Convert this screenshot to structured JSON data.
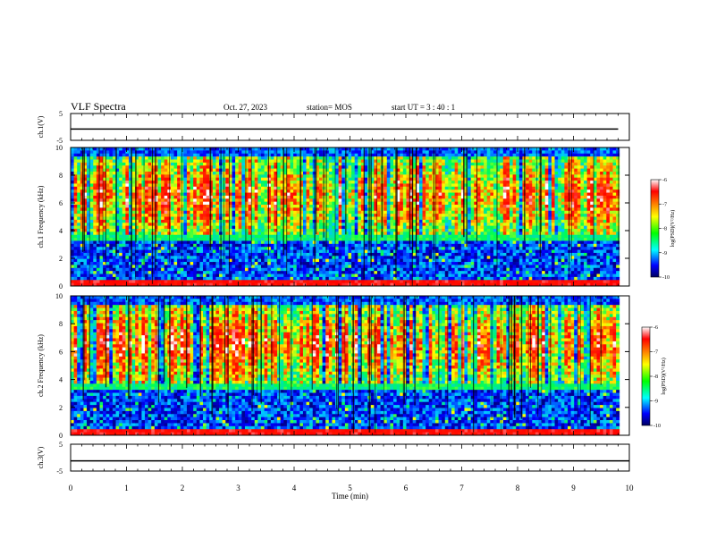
{
  "header": {
    "title": "VLF Spectra",
    "date": "Oct. 27, 2023",
    "station": "station= MOS",
    "start": "start  UT  =   3  : 40 : 1"
  },
  "chart_data": [
    {
      "type": "line",
      "ylabel": "ch.1(V)",
      "ylim": [
        -5,
        5
      ],
      "yticks": [
        "5",
        "-5"
      ],
      "series": [
        {
          "x": [
            0,
            9.8
          ],
          "y": [
            -0.8,
            -0.8
          ],
          "color": "#000000"
        }
      ]
    },
    {
      "type": "heatmap",
      "ylabel": "ch.1 Frequency (kHz)",
      "ylim": [
        0,
        10
      ],
      "yticks": [
        "0",
        "2",
        "4",
        "6",
        "8",
        "10"
      ],
      "xlim": [
        0,
        9.82
      ],
      "colorbar": {
        "label": "log(PSD)(V²/Hz)",
        "range": [
          -10,
          -6
        ],
        "ticks": [
          "-6",
          "-7",
          "-8",
          "-9",
          "-10"
        ]
      }
    },
    {
      "type": "heatmap",
      "ylabel": "ch.2 Frequency (kHz)",
      "ylim": [
        0,
        10
      ],
      "yticks": [
        "0",
        "2",
        "4",
        "6",
        "8",
        "10"
      ],
      "xlim": [
        0,
        9.82
      ],
      "colorbar": {
        "label": "log(PSD)(V²/Hz)",
        "range": [
          -10,
          -6
        ],
        "ticks": [
          "-6",
          "-7",
          "-8",
          "-9",
          "-10"
        ]
      }
    },
    {
      "type": "line",
      "ylabel": "ch.3(V)",
      "ylim": [
        -5,
        5
      ],
      "yticks": [
        "5",
        "-5"
      ],
      "xlabel": "Time  (min)",
      "xlim": [
        0,
        10
      ],
      "xticks": [
        "0",
        "1",
        "2",
        "3",
        "4",
        "5",
        "6",
        "7",
        "8",
        "9",
        "10"
      ],
      "series": [
        {
          "x": [
            0,
            10
          ],
          "y": [
            -1.2,
            -1.2
          ],
          "color": "#000000"
        }
      ]
    }
  ],
  "colors": {
    "colormap": [
      "#ffffff",
      "#ff0000",
      "#ffff00",
      "#00ff00",
      "#00ffff",
      "#0000ff",
      "#000080"
    ]
  }
}
